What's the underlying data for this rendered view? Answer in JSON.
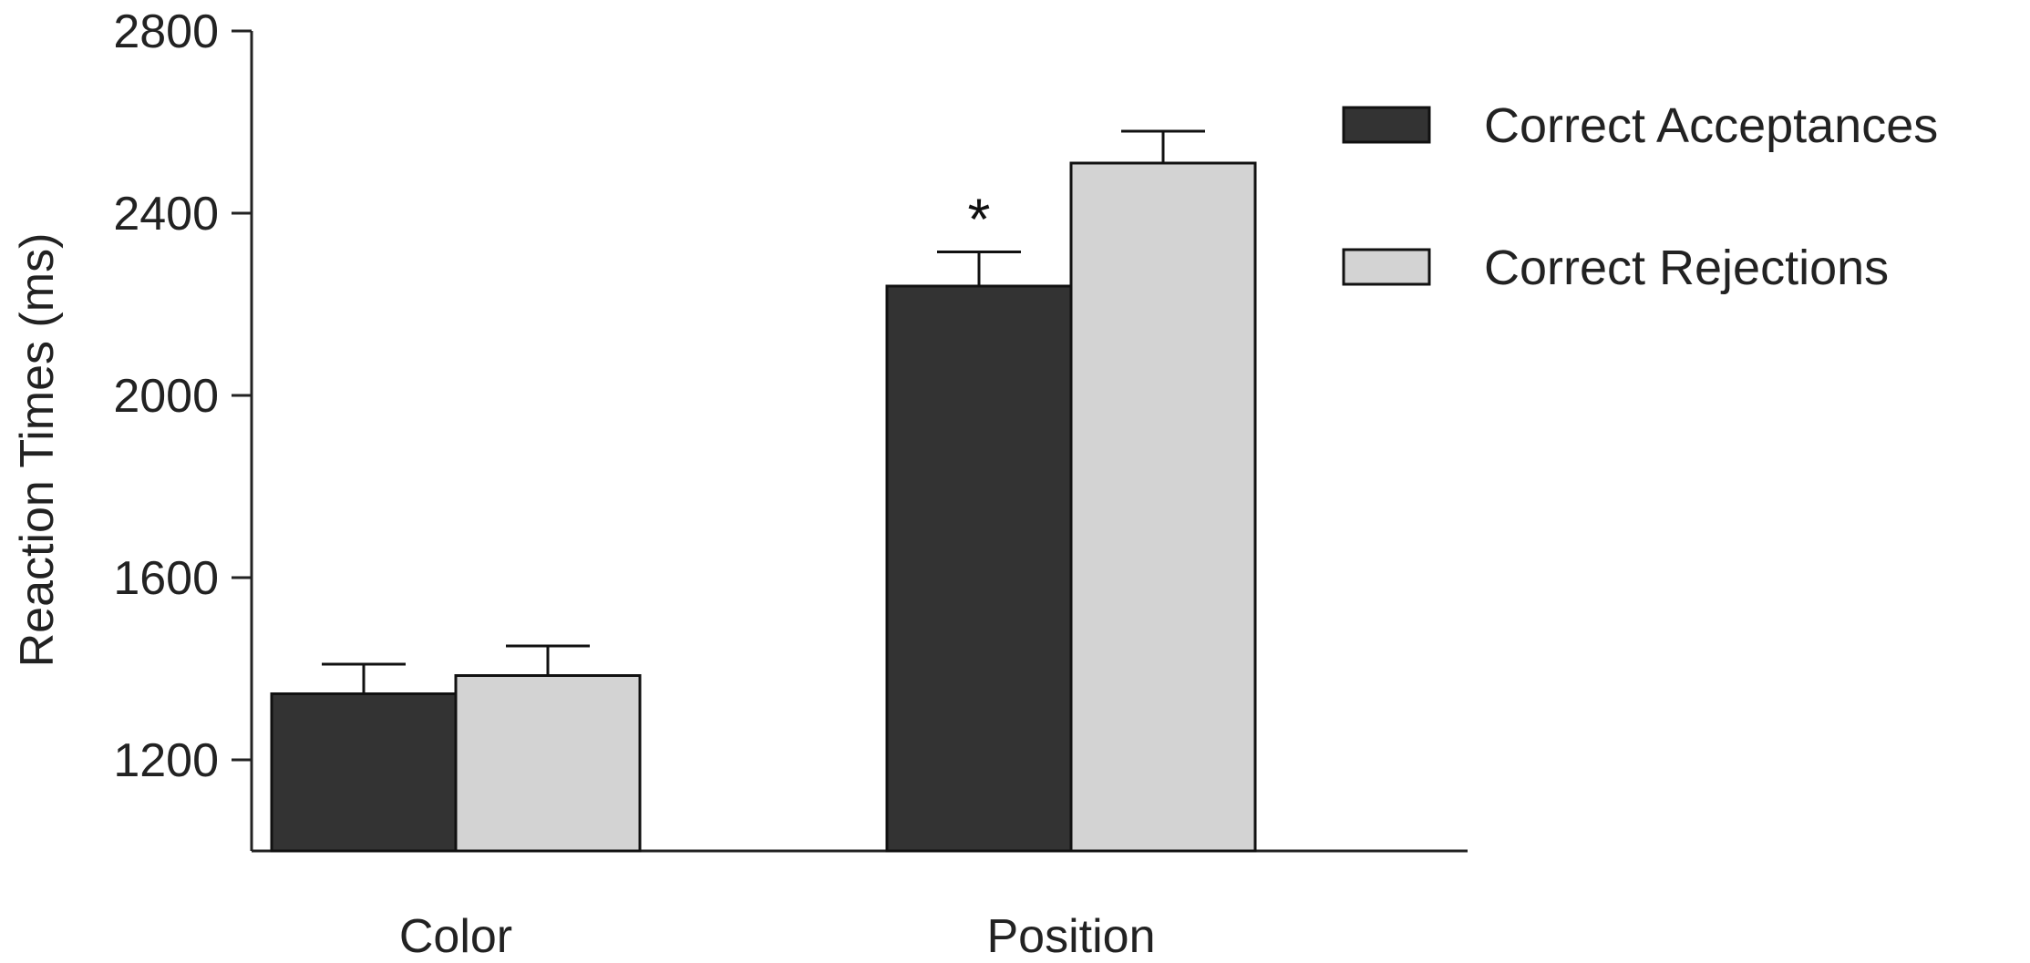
{
  "chart_data": {
    "type": "bar",
    "title": "",
    "xlabel": "",
    "ylabel": "Reaction Times (ms)",
    "ylim": [
      1000,
      2800
    ],
    "yticks": [
      1200,
      1600,
      2000,
      2400,
      2800
    ],
    "categories": [
      "Color",
      "Position"
    ],
    "series": [
      {
        "name": "Correct Acceptances",
        "color": "#333333",
        "values": [
          1345,
          2240
        ],
        "errors": [
          65,
          75
        ]
      },
      {
        "name": "Correct Rejections",
        "color": "#d3d3d3",
        "values": [
          1385,
          2510
        ],
        "errors": [
          65,
          70
        ]
      }
    ],
    "annotations": [
      {
        "text": "*",
        "category": "Position",
        "series": "Correct Acceptances"
      }
    ],
    "grid": false,
    "legend_position": "top-right"
  }
}
